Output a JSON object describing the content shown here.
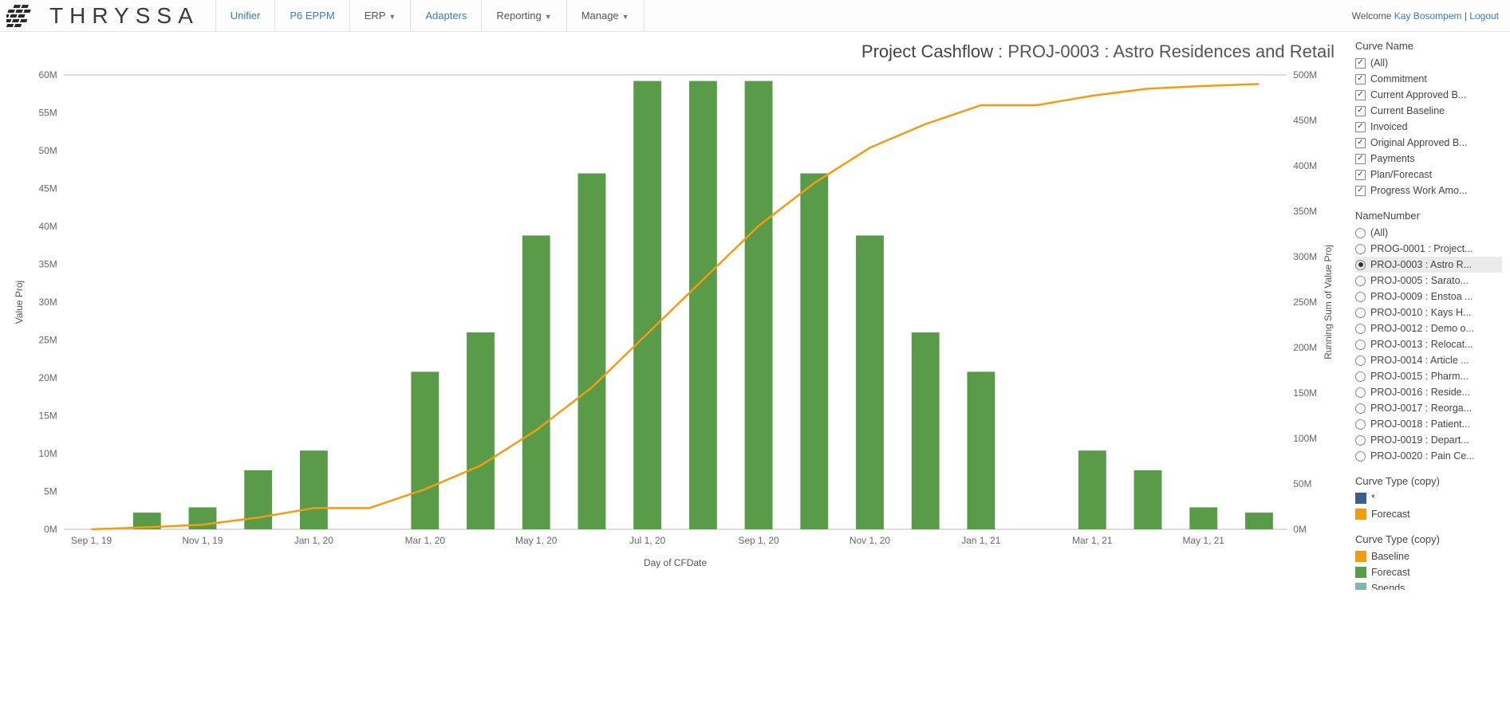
{
  "brand": "THRYSSA",
  "nav": [
    {
      "label": "Unifier",
      "link": true,
      "dropdown": false
    },
    {
      "label": "P6 EPPM",
      "link": true,
      "dropdown": false
    },
    {
      "label": "ERP",
      "link": false,
      "dropdown": true
    },
    {
      "label": "Adapters",
      "link": true,
      "dropdown": false
    },
    {
      "label": "Reporting",
      "link": false,
      "dropdown": true
    },
    {
      "label": "Manage",
      "link": false,
      "dropdown": true
    }
  ],
  "welcome": {
    "prefix": "Welcome ",
    "user": "Kay Bosompem",
    "sep": " | ",
    "logout": "Logout"
  },
  "chart": {
    "title_bold": "Project Cashflow",
    "title_rest": " : PROJ-0003 : Astro Residences and Retail",
    "x_label": "Day of CFDate",
    "y_left_label": "Value Proj",
    "y_right_label": "Running Sum of Value Proj",
    "bar_color": "#5a9b4a",
    "line_color": "#f39c12",
    "grid_color": "#eeeeee",
    "text_color": "#666666",
    "y_left": {
      "min": 0,
      "max": 60,
      "step": 5,
      "suffix": "M"
    },
    "y_right": {
      "min": 0,
      "max": 500,
      "step": 50,
      "suffix": "M"
    },
    "x_labels": [
      "Sep 1, 19",
      "Nov 1, 19",
      "Jan 1, 20",
      "Mar 1, 20",
      "May 1, 20",
      "Jul 1, 20",
      "Sep 1, 20",
      "Nov 1, 20",
      "Jan 1, 21",
      "Mar 1, 21",
      "May 1, 21"
    ],
    "bars": [
      {
        "i": 1,
        "v": 2.2
      },
      {
        "i": 2,
        "v": 2.9
      },
      {
        "i": 3,
        "v": 7.8
      },
      {
        "i": 4,
        "v": 10.4
      },
      {
        "i": 6,
        "v": 20.8
      },
      {
        "i": 7,
        "v": 26.0
      },
      {
        "i": 8,
        "v": 38.8
      },
      {
        "i": 9,
        "v": 47.0
      },
      {
        "i": 10,
        "v": 59.2
      },
      {
        "i": 11,
        "v": 59.2
      },
      {
        "i": 12,
        "v": 59.2
      },
      {
        "i": 13,
        "v": 47.0
      },
      {
        "i": 14,
        "v": 38.8
      },
      {
        "i": 15,
        "v": 26.0
      },
      {
        "i": 16,
        "v": 20.8
      },
      {
        "i": 18,
        "v": 10.4
      },
      {
        "i": 19,
        "v": 7.8
      },
      {
        "i": 20,
        "v": 2.9
      },
      {
        "i": 21,
        "v": 2.2
      }
    ],
    "cumulative_max": 490,
    "bar_slots": 22
  },
  "panels": {
    "curve_name": {
      "title": "Curve Name",
      "items": [
        "(All)",
        "Commitment",
        "Current Approved B...",
        "Current Baseline",
        "Invoiced",
        "Original Approved B...",
        "Payments",
        "Plan/Forecast",
        "Progress Work Amo..."
      ]
    },
    "name_number": {
      "title": "NameNumber",
      "selected": 2,
      "items": [
        "(All)",
        "PROG-0001 : Project...",
        "PROJ-0003 : Astro R...",
        "PROJ-0005 : Sarato...",
        "PROJ-0009 : Enstoa ...",
        "PROJ-0010 : Kays H...",
        "PROJ-0012 : Demo o...",
        "PROJ-0013 : Relocat...",
        "PROJ-0014 : Article ...",
        "PROJ-0015 : Pharm...",
        "PROJ-0016 : Reside...",
        "PROJ-0017 : Reorga...",
        "PROJ-0018 : Patient...",
        "PROJ-0019 : Depart...",
        "PROJ-0020 : Pain Ce..."
      ]
    },
    "curve_type_1": {
      "title": "Curve Type (copy)",
      "items": [
        {
          "label": "*",
          "color": "#3b5f8a"
        },
        {
          "label": "Forecast",
          "color": "#f39c12"
        }
      ]
    },
    "curve_type_2": {
      "title": "Curve Type (copy)",
      "items": [
        {
          "label": "Baseline",
          "color": "#f39c12"
        },
        {
          "label": "Forecast",
          "color": "#5a9b4a"
        },
        {
          "label": "Spends",
          "color": "#7bb8b0"
        }
      ]
    }
  }
}
